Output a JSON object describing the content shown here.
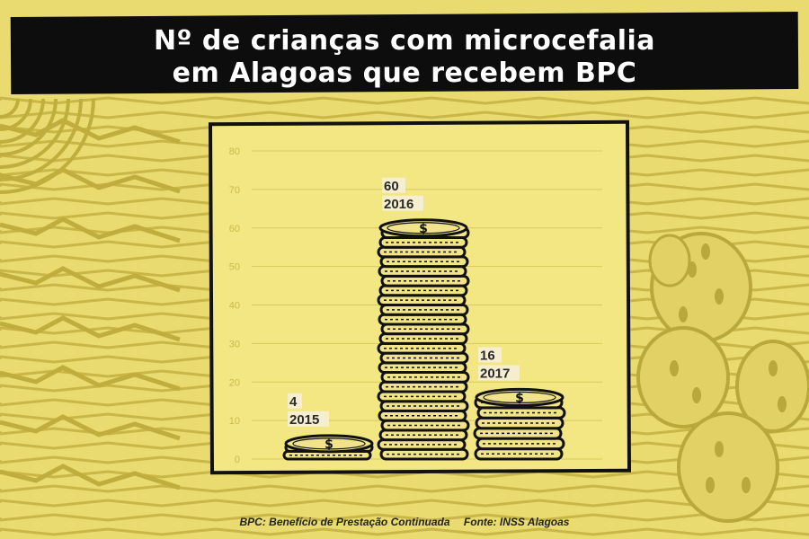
{
  "title": {
    "line1": "Nº de crianças com microcefalia",
    "line2": "em Alagoas que recebem BPC"
  },
  "footer": {
    "note": "BPC: Benefício de Prestação Continuada",
    "source": "Fonte: INSS Alagoas"
  },
  "colors": {
    "background": "#e9db6f",
    "panel": "#f3e784",
    "coin_face": "#f1e38a",
    "ink": "#111111",
    "label_bg": "#f6eed0"
  },
  "chart_data": {
    "type": "bar",
    "title": "Nº de crianças com microcefalia em Alagoas que recebem BPC",
    "categories": [
      "2015",
      "2016",
      "2017"
    ],
    "values": [
      4,
      60,
      16
    ],
    "ylim": [
      0,
      80
    ],
    "yticks": [
      0,
      10,
      20,
      30,
      40,
      50,
      60,
      70,
      80
    ],
    "grid": true,
    "mark": "stacked-coins",
    "coin_symbol": "$"
  }
}
